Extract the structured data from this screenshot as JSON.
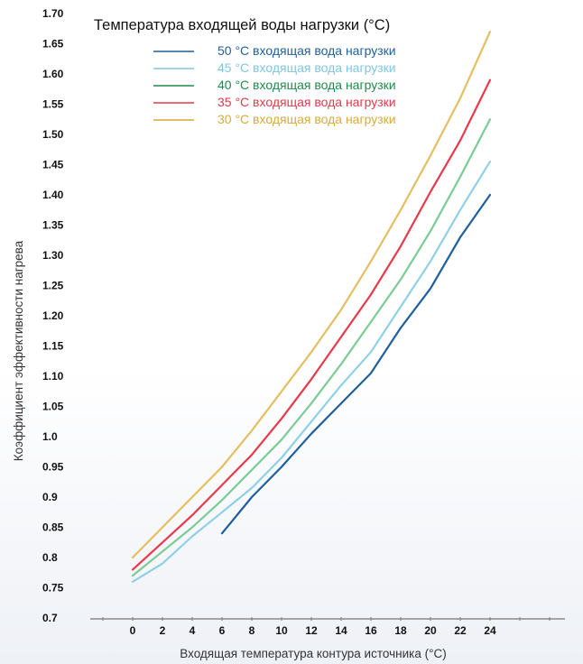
{
  "chart_data": {
    "type": "line",
    "title": "Температура входящей воды нагрузки (°C)",
    "xlabel": "Входящая температура контура источника (°C)",
    "ylabel": "Коэффициент эффективности нагрева",
    "x_ticks": [
      "0",
      "2",
      "4",
      "6",
      "8",
      "10",
      "12",
      "14",
      "16",
      "18",
      "20",
      "22",
      "24"
    ],
    "y_ticks": [
      "0.7",
      "0.75",
      "0.8",
      "0.85",
      "0.9",
      "0.95",
      "1.0",
      "1.05",
      "1.10",
      "1.15",
      "1.20",
      "1.25",
      "1.30",
      "1.35",
      "1.40",
      "1.45",
      "1.50",
      "1.55",
      "1.60",
      "1.65",
      "1.70"
    ],
    "ylim": [
      0.7,
      1.7
    ],
    "grid": false,
    "legend_position": "top",
    "series": [
      {
        "name": "50 °C входящая вода нагрузки",
        "color": "#1f5f9e",
        "legend_color": "#1f5f9e",
        "x": [
          6,
          8,
          10,
          12,
          14,
          16,
          18,
          20,
          22,
          24
        ],
        "y": [
          0.84,
          0.9,
          0.95,
          1.005,
          1.055,
          1.105,
          1.18,
          1.245,
          1.33,
          1.4
        ]
      },
      {
        "name": "45 °C входящая вода нагрузки",
        "color": "#8fd0e6",
        "legend_color": "#7fc6e2",
        "x": [
          0,
          2,
          4,
          6,
          8,
          10,
          12,
          14,
          16,
          18,
          20,
          22,
          24
        ],
        "y": [
          0.76,
          0.79,
          0.835,
          0.875,
          0.915,
          0.965,
          1.025,
          1.085,
          1.14,
          1.215,
          1.29,
          1.375,
          1.455
        ]
      },
      {
        "name": "40 °C входящая вода нагрузки",
        "color": "#7acb94",
        "legend_color": "#1f8a4c",
        "x": [
          0,
          2,
          4,
          6,
          8,
          10,
          12,
          14,
          16,
          18,
          20,
          22,
          24
        ],
        "y": [
          0.77,
          0.81,
          0.85,
          0.895,
          0.945,
          0.995,
          1.055,
          1.12,
          1.19,
          1.26,
          1.34,
          1.43,
          1.525
        ]
      },
      {
        "name": "35 °C входящая вода нагрузки",
        "color": "#e8394a",
        "legend_color": "#e23a48",
        "x": [
          0,
          2,
          4,
          6,
          8,
          10,
          12,
          14,
          16,
          18,
          20,
          22,
          24
        ],
        "y": [
          0.78,
          0.825,
          0.87,
          0.92,
          0.97,
          1.03,
          1.095,
          1.165,
          1.235,
          1.315,
          1.405,
          1.49,
          1.59
        ]
      },
      {
        "name": "30 °C входящая вода нагрузки",
        "color": "#e4bf62",
        "legend_color": "#d9aa3a",
        "x": [
          0,
          2,
          4,
          6,
          8,
          10,
          12,
          14,
          16,
          18,
          20,
          22,
          24
        ],
        "y": [
          0.8,
          0.85,
          0.9,
          0.95,
          1.01,
          1.075,
          1.14,
          1.21,
          1.29,
          1.375,
          1.465,
          1.56,
          1.67
        ]
      }
    ]
  }
}
